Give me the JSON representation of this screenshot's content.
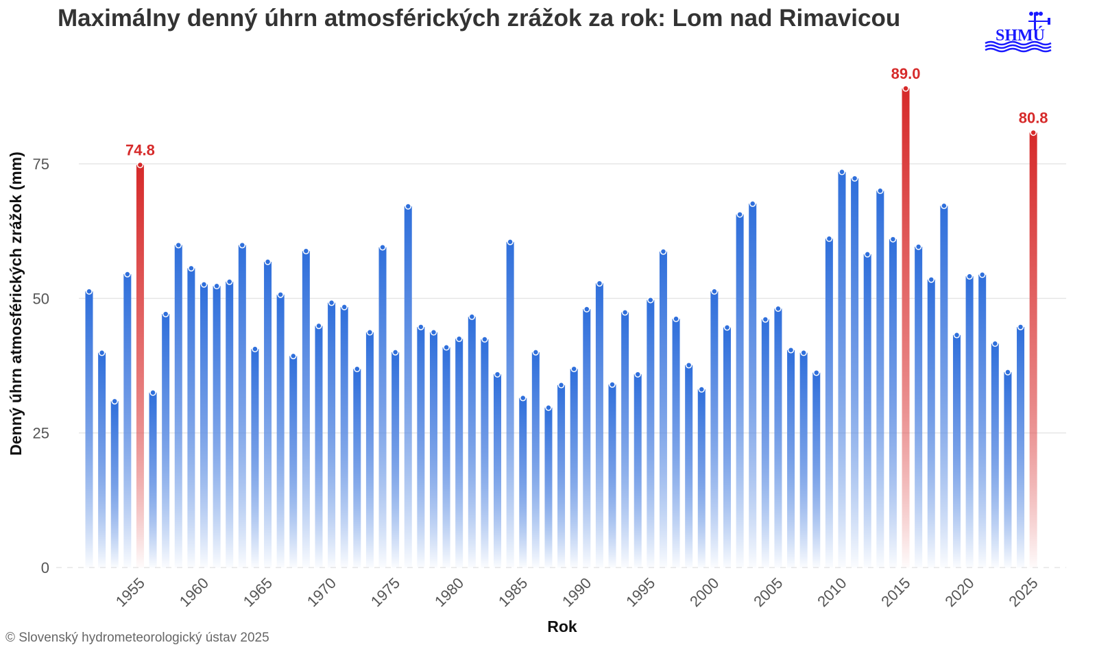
{
  "chart_data": {
    "type": "bar",
    "title": "Maximálny denný úhrn atmosférických zrážok za rok: Lom nad Rimavicou",
    "xlabel": "Rok",
    "ylabel": "Denný úhrn atmosférických zrážok (mm)",
    "ylim": [
      0,
      92
    ],
    "yticks": [
      "0",
      "25",
      "50",
      "75"
    ],
    "xticks": [
      "1955",
      "1960",
      "1965",
      "1970",
      "1975",
      "1980",
      "1985",
      "1990",
      "1995",
      "2000",
      "2005",
      "2010",
      "2015",
      "2020",
      "2025"
    ],
    "grid": true,
    "x": [
      1951,
      1952,
      1953,
      1954,
      1955,
      1956,
      1957,
      1958,
      1959,
      1960,
      1961,
      1962,
      1963,
      1964,
      1965,
      1966,
      1967,
      1968,
      1969,
      1970,
      1971,
      1972,
      1973,
      1974,
      1975,
      1976,
      1977,
      1978,
      1979,
      1980,
      1981,
      1982,
      1983,
      1984,
      1985,
      1986,
      1987,
      1988,
      1989,
      1990,
      1991,
      1992,
      1993,
      1994,
      1995,
      1996,
      1997,
      1998,
      1999,
      2000,
      2001,
      2002,
      2003,
      2004,
      2005,
      2006,
      2007,
      2008,
      2009,
      2010,
      2011,
      2012,
      2013,
      2014,
      2015,
      2016,
      2017,
      2018,
      2019,
      2020,
      2021,
      2022,
      2023,
      2024,
      2025
    ],
    "values": [
      51.3,
      39.9,
      30.9,
      54.5,
      74.8,
      32.5,
      47.1,
      59.9,
      55.6,
      52.6,
      52.3,
      53.1,
      59.9,
      40.6,
      56.8,
      50.7,
      39.3,
      58.8,
      44.9,
      49.2,
      48.4,
      36.9,
      43.7,
      59.5,
      40.0,
      67.1,
      44.7,
      43.7,
      40.9,
      42.5,
      46.6,
      42.4,
      35.9,
      60.5,
      31.5,
      40.0,
      29.7,
      33.9,
      36.9,
      48.0,
      52.8,
      34.0,
      47.4,
      35.9,
      49.7,
      58.7,
      46.2,
      37.6,
      33.1,
      51.3,
      44.6,
      65.6,
      67.6,
      46.1,
      48.1,
      40.4,
      39.9,
      36.2,
      61.1,
      73.5,
      72.3,
      58.2,
      70.0,
      61.0,
      89.0,
      59.6,
      53.5,
      67.2,
      43.2,
      54.1,
      54.4,
      41.6,
      36.3,
      44.7,
      80.8
    ],
    "highlighted": [
      {
        "year": 1955,
        "label": "74.8"
      },
      {
        "year": 2015,
        "label": "89.0"
      },
      {
        "year": 2025,
        "label": "80.8"
      }
    ],
    "colors": {
      "bar": "#2f6fdb",
      "highlight": "#d62a2a",
      "grid": "#e6e6e6"
    }
  },
  "footer": "© Slovenský hydrometeorologický ústav 2025",
  "logo": {
    "text": "SHMÚ",
    "color": "#1a1aff"
  }
}
